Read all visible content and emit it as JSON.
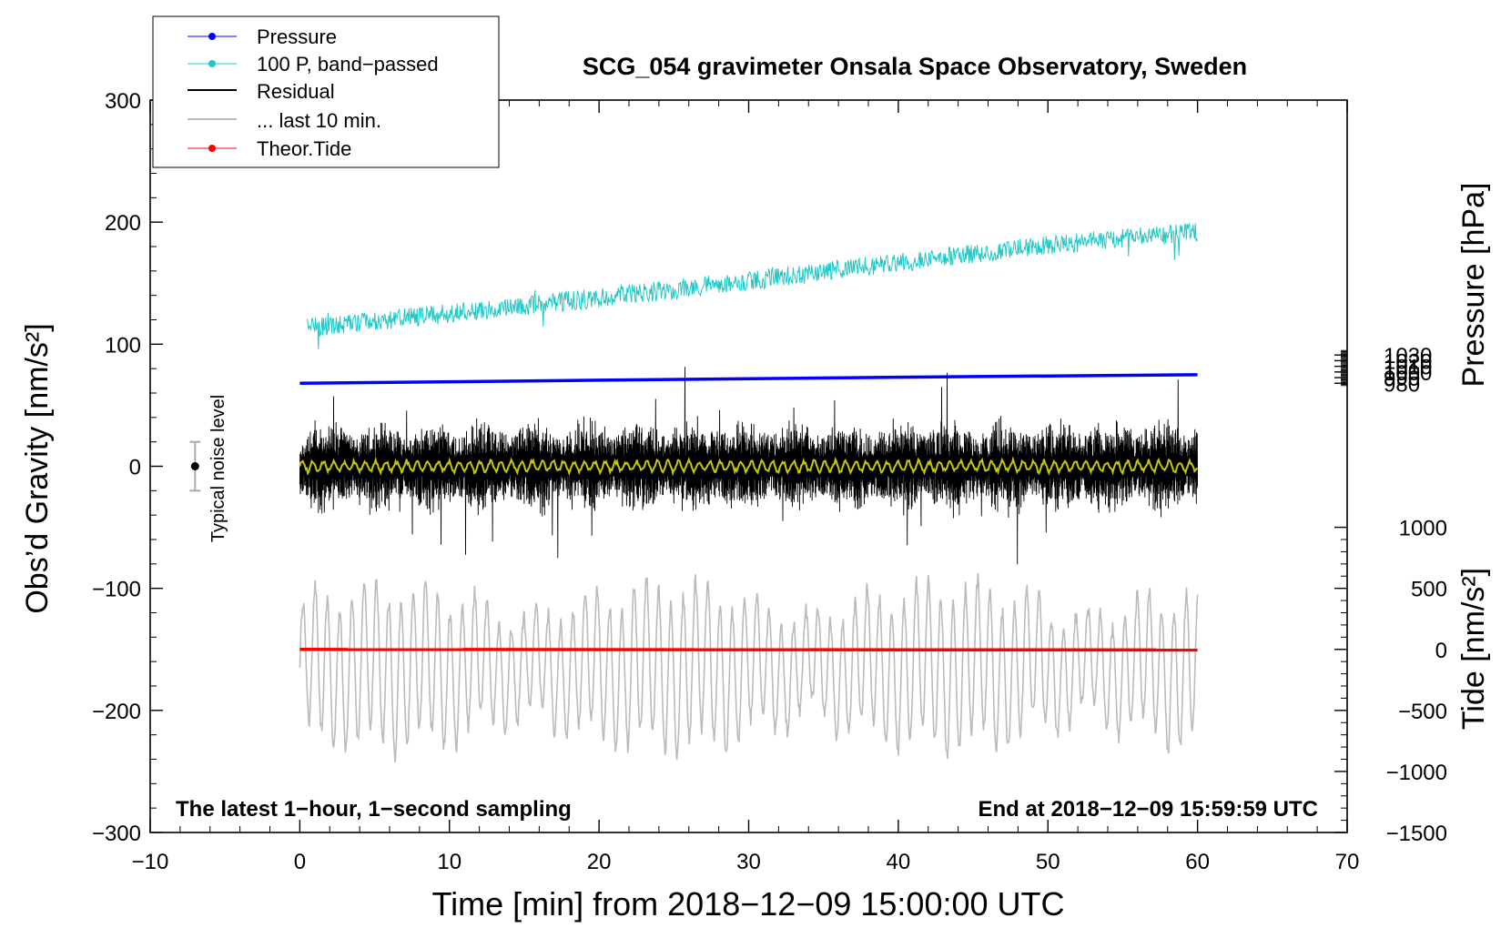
{
  "chart_data": {
    "type": "line",
    "title": "SCG_054 gravimeter Onsala Space Observatory, Sweden",
    "xlabel": "Time [min] from 2018−12−09 15:00:00 UTC",
    "ylabel_left": "Obs’d Gravity [nm/s²]",
    "ylabel_right_top": "Pressure [hPa]",
    "ylabel_right_bottom": "Tide [nm/s²]",
    "xlim": [
      -10,
      70
    ],
    "ylim": [
      -300,
      300
    ],
    "pressure_axis": {
      "ticks": [
        980,
        990,
        1000,
        1010,
        1020,
        1030
      ]
    },
    "tide_axis": {
      "ticks": [
        -1500,
        -1000,
        -500,
        0,
        500,
        1000
      ]
    },
    "x_ticks": [
      -10,
      0,
      10,
      20,
      30,
      40,
      50,
      60,
      70
    ],
    "x_tick_labels": [
      "−10",
      "0",
      "10",
      "20",
      "30",
      "40",
      "50",
      "60",
      "70"
    ],
    "y_ticks": [
      -300,
      -200,
      -100,
      0,
      100,
      200,
      300
    ],
    "y_tick_labels": [
      "−300",
      "−200",
      "−100",
      "0",
      "100",
      "200",
      "300"
    ],
    "pressure_tick_labels": [
      "980",
      "990",
      "1000",
      "1010",
      "1020",
      "1030"
    ],
    "tide_tick_labels": [
      "−1500",
      "−1000",
      "−500",
      "0",
      "500",
      "1000"
    ],
    "legend_position": "top-left",
    "legend": [
      {
        "label": "Pressure",
        "color": "#0000ff",
        "marker": "dot"
      },
      {
        "label": "100 P, band−passed",
        "color": "#20c8c8",
        "marker": "dot"
      },
      {
        "label": "Residual",
        "color": "#000000",
        "marker": "none"
      },
      {
        "label": "... last 10 min.",
        "color": "#bbbbbb",
        "marker": "none"
      },
      {
        "label": "Theor.Tide",
        "color": "#ff0000",
        "marker": "dot"
      }
    ],
    "series": [
      {
        "name": "Pressure",
        "color": "#0000ff",
        "x": [
          0,
          20,
          40,
          60
        ],
        "y": [
          68,
          70.5,
          73,
          75
        ]
      },
      {
        "name": "100 P, band-passed",
        "color": "#20c8c8",
        "x": [
          0,
          10,
          20,
          30,
          40,
          50,
          60
        ],
        "y": [
          113,
          125,
          138,
          152,
          167,
          181,
          192
        ]
      },
      {
        "name": "Residual",
        "color": "#000000",
        "x": [
          0,
          60
        ],
        "y": [
          0,
          0
        ],
        "typical_amplitude": 40
      },
      {
        "name": "Residual smoothed",
        "color": "#c8c800",
        "x": [
          0,
          60
        ],
        "y": [
          0,
          0
        ]
      },
      {
        "name": "... last 10 min.",
        "color": "#bbbbbb",
        "x": [
          0,
          60
        ],
        "y": [
          -165,
          -165
        ],
        "typical_amplitude": 55
      },
      {
        "name": "Theor.Tide",
        "color": "#ff0000",
        "x": [
          0,
          60
        ],
        "y": [
          -150,
          -150.5
        ]
      }
    ],
    "noise_level": {
      "label": "Typical noise level",
      "x": -7,
      "center": 0,
      "half_range": 20
    },
    "annotations": {
      "bottom_left": "The latest 1−hour, 1−second sampling",
      "bottom_right": "End at 2018−12−09 15:59:59 UTC"
    },
    "colors": {
      "residual_smooth": "#c8c800",
      "noise_bar": "#aaaaaa"
    }
  }
}
